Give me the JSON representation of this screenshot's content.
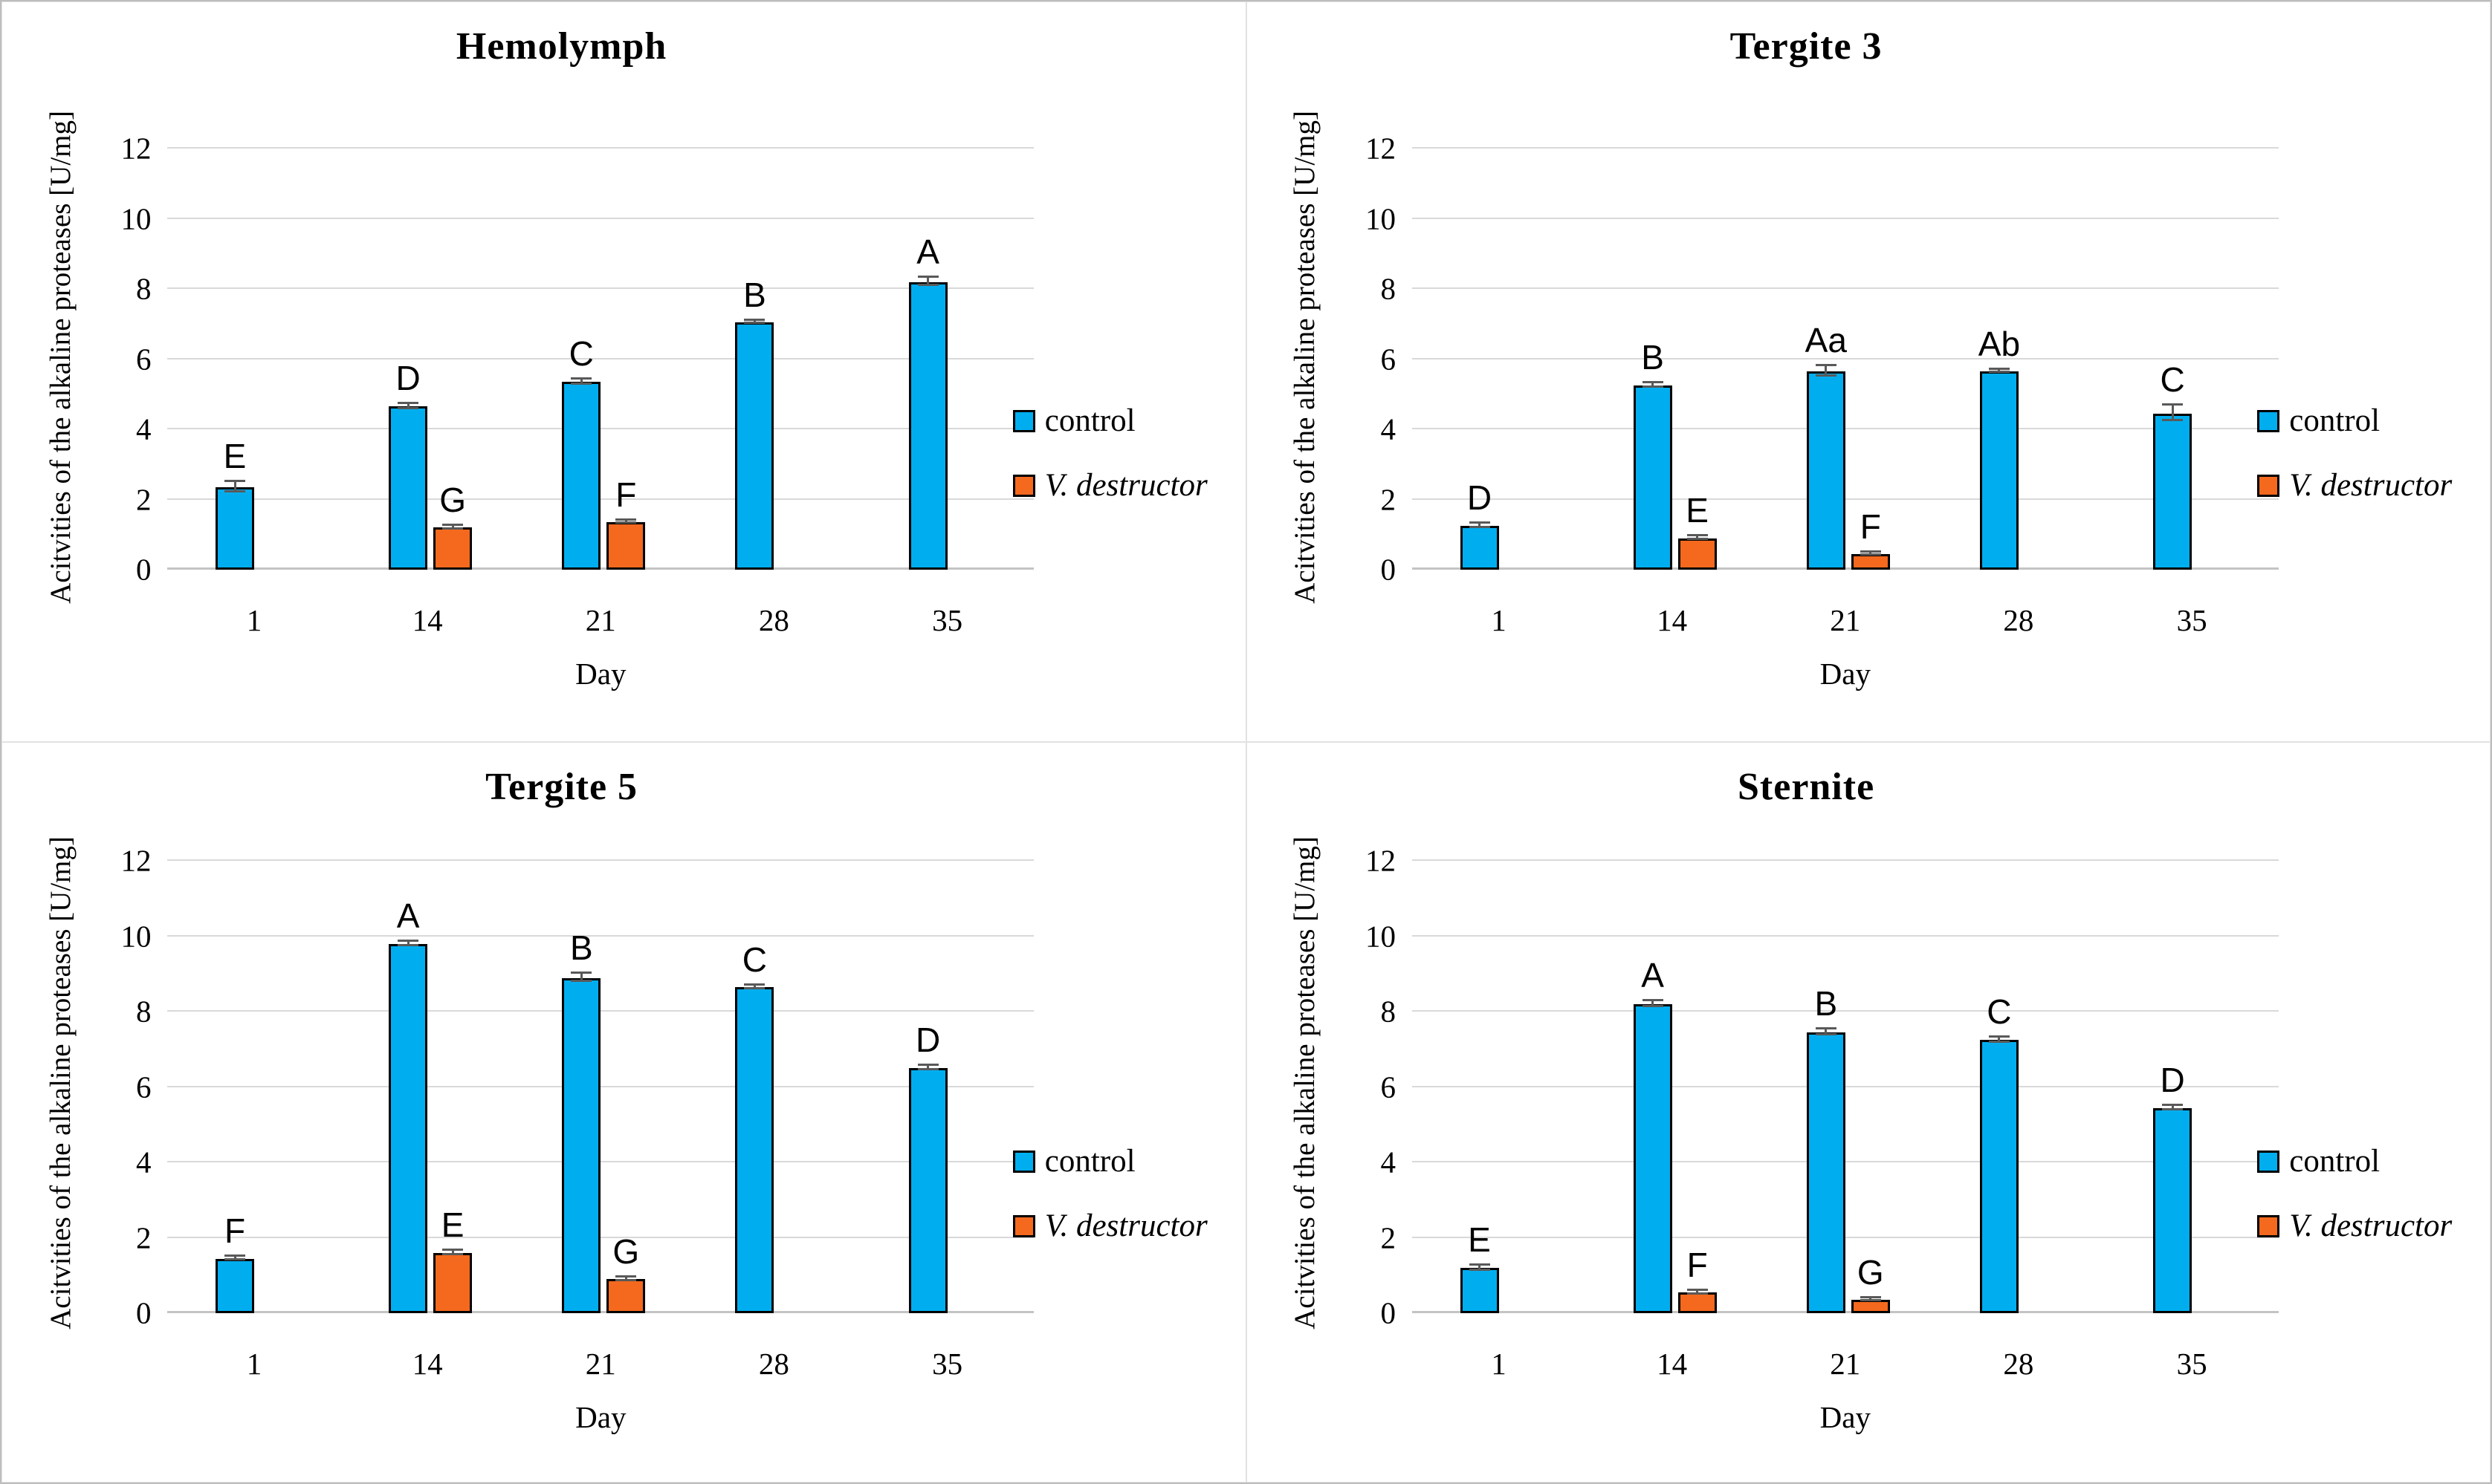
{
  "figure": {
    "type": "2x2 grouped bar chart figure",
    "background": "#ffffff"
  },
  "colors": {
    "control": "#00AEEF",
    "varroa": "#F4691E",
    "bar_outline": "#000000",
    "error_bar": "#595959",
    "gridline": "#D9D9D9"
  },
  "legend": {
    "control": "control",
    "varroa": "V. destructor",
    "position": "right of plot"
  },
  "chart_data": [
    {
      "type": "bar",
      "title": "Hemolymph",
      "xlabel": "Day",
      "ylabel": "Acitvities of the alkaline proteases [U/mg]",
      "ylim": [
        0,
        12
      ],
      "yticks": [
        0,
        2,
        4,
        6,
        8,
        10,
        12
      ],
      "grid": "horizontal",
      "categories": [
        "1",
        "14",
        "21",
        "28",
        "35"
      ],
      "series": [
        {
          "name": "control",
          "color": "#00AEEF",
          "values": [
            2.35,
            4.65,
            5.35,
            7.05,
            8.2
          ],
          "errors": [
            0.15,
            0.07,
            0.07,
            0.05,
            0.12
          ],
          "letters": [
            "E",
            "D",
            "C",
            "B",
            "A"
          ]
        },
        {
          "name": "V. destructor",
          "color": "#F4691E",
          "values": [
            null,
            1.2,
            1.35,
            null,
            null
          ],
          "errors": [
            null,
            0.05,
            0.04,
            null,
            null
          ],
          "letters": [
            null,
            "G",
            "F",
            null,
            null
          ]
        }
      ]
    },
    {
      "type": "bar",
      "title": "Tergite 3",
      "xlabel": "Day",
      "ylabel": "Acitvities of the alkaline proteases [U/mg]",
      "ylim": [
        0,
        12
      ],
      "yticks": [
        0,
        2,
        4,
        6,
        8,
        10,
        12
      ],
      "grid": "horizontal",
      "categories": [
        "1",
        "14",
        "21",
        "28",
        "35"
      ],
      "series": [
        {
          "name": "control",
          "color": "#00AEEF",
          "values": [
            1.25,
            5.25,
            5.65,
            5.65,
            4.45
          ],
          "errors": [
            0.06,
            0.07,
            0.15,
            0.05,
            0.22
          ],
          "letters": [
            "D",
            "B",
            "Aa",
            "Ab",
            "C"
          ]
        },
        {
          "name": "V. destructor",
          "color": "#F4691E",
          "values": [
            null,
            0.9,
            0.45,
            null,
            null
          ],
          "errors": [
            null,
            0.05,
            0.04,
            null,
            null
          ],
          "letters": [
            null,
            "E",
            "F",
            null,
            null
          ]
        }
      ]
    },
    {
      "type": "bar",
      "title": "Tergite 5",
      "xlabel": "Day",
      "ylabel": "Acitvities of the alkaline proteases [U/mg]",
      "ylim": [
        0,
        12
      ],
      "yticks": [
        0,
        2,
        4,
        6,
        8,
        10,
        12
      ],
      "grid": "horizontal",
      "categories": [
        "1",
        "14",
        "21",
        "28",
        "35"
      ],
      "series": [
        {
          "name": "control",
          "color": "#00AEEF",
          "values": [
            1.45,
            9.8,
            8.9,
            8.65,
            6.5
          ],
          "errors": [
            0.05,
            0.06,
            0.1,
            0.05,
            0.06
          ],
          "letters": [
            "F",
            "A",
            "B",
            "C",
            "D"
          ]
        },
        {
          "name": "V. destructor",
          "color": "#F4691E",
          "values": [
            null,
            1.6,
            0.9,
            null,
            null
          ],
          "errors": [
            null,
            0.06,
            0.04,
            null,
            null
          ],
          "letters": [
            null,
            "E",
            "G",
            null,
            null
          ]
        }
      ]
    },
    {
      "type": "bar",
      "title": "Sternite",
      "xlabel": "Day",
      "ylabel": "Acitvities of the alkaline proteases [U/mg]",
      "ylim": [
        0,
        12
      ],
      "yticks": [
        0,
        2,
        4,
        6,
        8,
        10,
        12
      ],
      "grid": "horizontal",
      "categories": [
        "1",
        "14",
        "21",
        "28",
        "35"
      ],
      "series": [
        {
          "name": "control",
          "color": "#00AEEF",
          "values": [
            1.2,
            8.2,
            7.45,
            7.25,
            5.45
          ],
          "errors": [
            0.07,
            0.07,
            0.08,
            0.07,
            0.06
          ],
          "letters": [
            "E",
            "A",
            "B",
            "C",
            "D"
          ]
        },
        {
          "name": "V. destructor",
          "color": "#F4691E",
          "values": [
            null,
            0.55,
            0.35,
            null,
            null
          ],
          "errors": [
            null,
            0.05,
            0.04,
            null,
            null
          ],
          "letters": [
            null,
            "F",
            "G",
            null,
            null
          ]
        }
      ]
    }
  ]
}
